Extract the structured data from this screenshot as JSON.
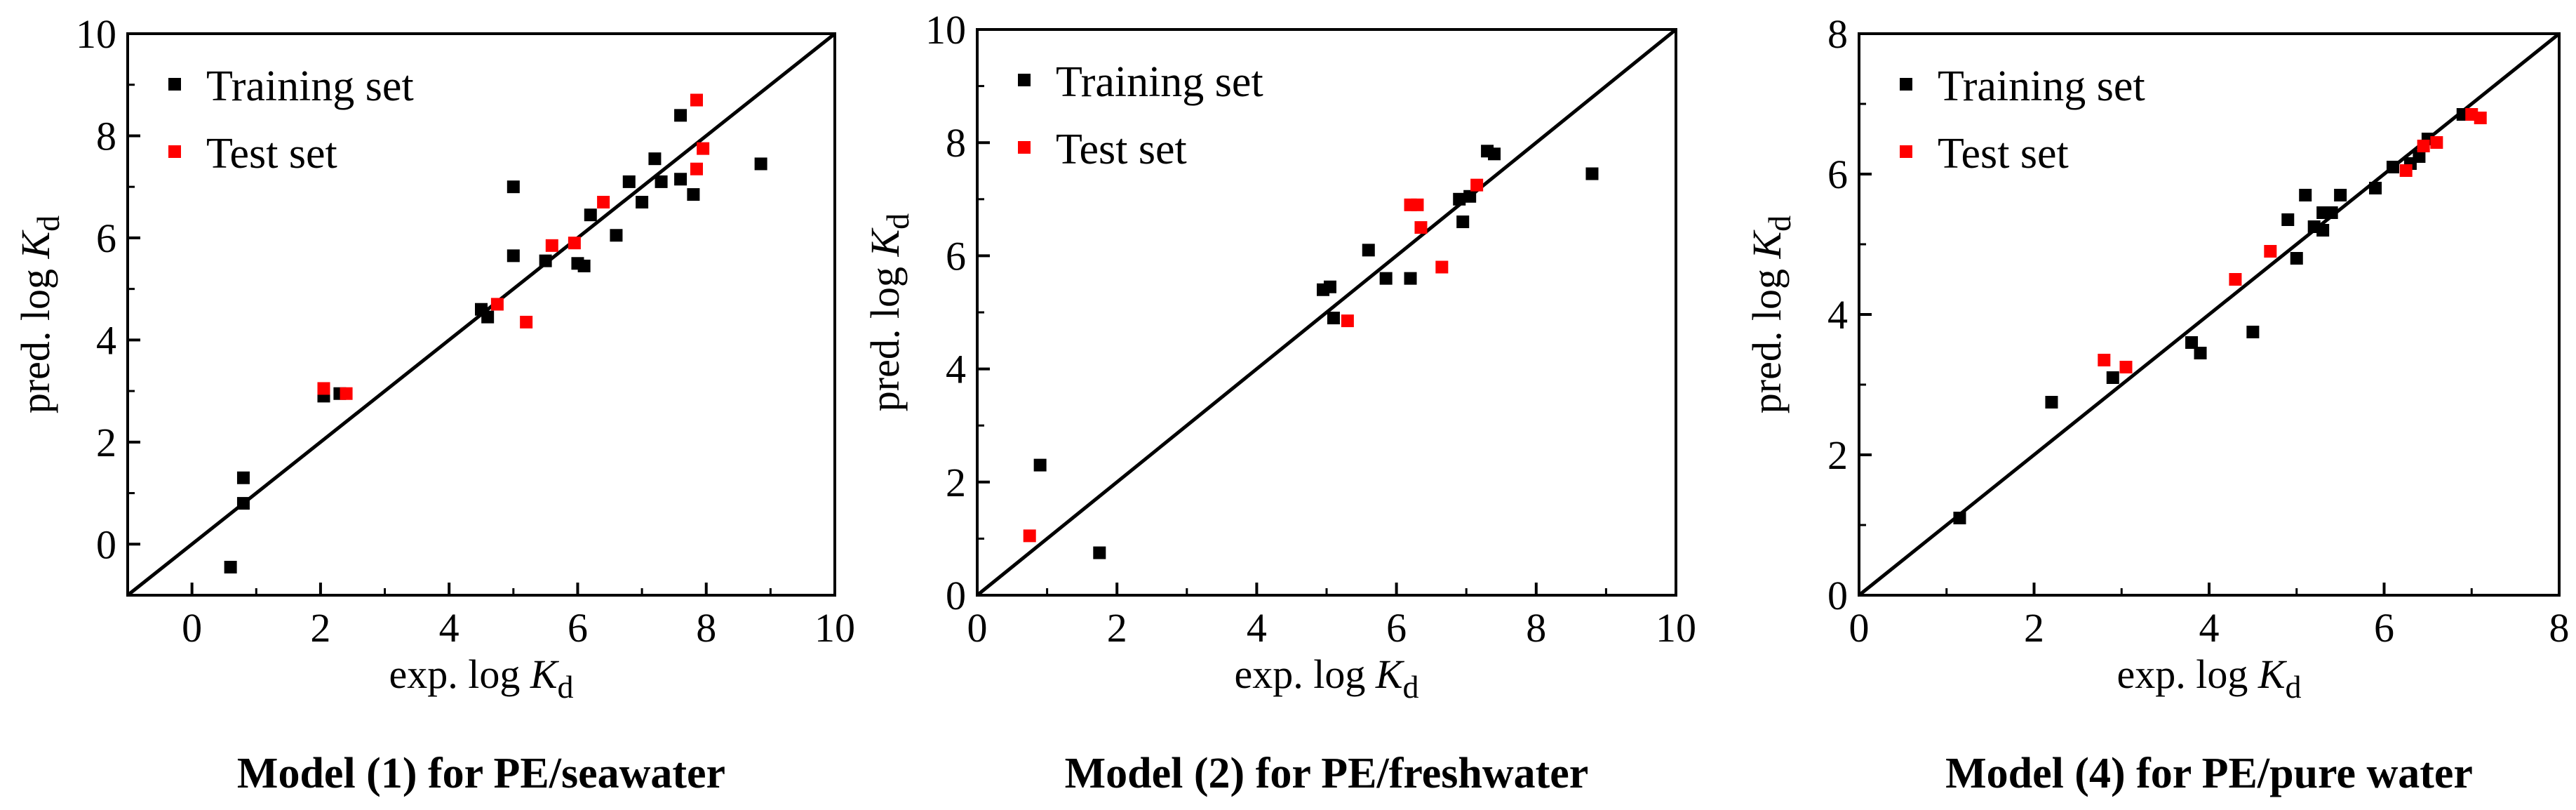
{
  "chart_data": [
    {
      "type": "scatter",
      "title": "Model (1) for PE/seawater",
      "xlabel": "exp. log Kd",
      "ylabel": "pred. log Kd",
      "xlim": [
        -1,
        10
      ],
      "ylim": [
        -1,
        10
      ],
      "xticks": [
        0,
        2,
        4,
        6,
        8,
        10
      ],
      "yticks": [
        0,
        2,
        4,
        6,
        8,
        10
      ],
      "diagonal": "y=x",
      "legend": "top-left",
      "series": [
        {
          "name": "Training set",
          "color": "#000000",
          "points": [
            [
              0.6,
              -0.45
            ],
            [
              0.8,
              1.3
            ],
            [
              0.8,
              0.8
            ],
            [
              2.05,
              2.9
            ],
            [
              2.3,
              2.95
            ],
            [
              4.5,
              4.6
            ],
            [
              4.6,
              4.45
            ],
            [
              5.0,
              7.0
            ],
            [
              5.0,
              5.65
            ],
            [
              5.5,
              5.55
            ],
            [
              6.0,
              5.5
            ],
            [
              6.1,
              5.45
            ],
            [
              6.2,
              6.45
            ],
            [
              6.6,
              6.05
            ],
            [
              6.8,
              7.1
            ],
            [
              7.0,
              6.7
            ],
            [
              7.2,
              7.55
            ],
            [
              7.3,
              7.1
            ],
            [
              7.6,
              8.4
            ],
            [
              7.6,
              7.15
            ],
            [
              7.8,
              6.85
            ],
            [
              8.85,
              7.45
            ]
          ]
        },
        {
          "name": "Test set",
          "color": "#ff0000",
          "points": [
            [
              2.05,
              3.05
            ],
            [
              2.4,
              2.95
            ],
            [
              4.75,
              4.7
            ],
            [
              5.2,
              4.35
            ],
            [
              5.6,
              5.85
            ],
            [
              5.95,
              5.9
            ],
            [
              6.4,
              6.7
            ],
            [
              7.85,
              8.7
            ],
            [
              7.85,
              7.35
            ],
            [
              7.95,
              7.75
            ]
          ]
        }
      ]
    },
    {
      "type": "scatter",
      "title": "Model (2) for PE/freshwater",
      "xlabel": "exp. log Kd",
      "ylabel": "pred. log Kd",
      "xlim": [
        0,
        10
      ],
      "ylim": [
        0,
        10
      ],
      "xticks": [
        0,
        2,
        4,
        6,
        8,
        10
      ],
      "yticks": [
        0,
        2,
        4,
        6,
        8,
        10
      ],
      "diagonal": "y=x",
      "legend": "top-left",
      "series": [
        {
          "name": "Training set",
          "color": "#000000",
          "points": [
            [
              0.9,
              2.3
            ],
            [
              1.75,
              0.75
            ],
            [
              4.95,
              5.4
            ],
            [
              5.05,
              5.45
            ],
            [
              5.1,
              4.9
            ],
            [
              5.6,
              6.1
            ],
            [
              5.85,
              5.6
            ],
            [
              6.2,
              5.6
            ],
            [
              6.9,
              7.0
            ],
            [
              6.95,
              6.6
            ],
            [
              7.05,
              7.05
            ],
            [
              7.3,
              7.85
            ],
            [
              7.4,
              7.8
            ],
            [
              8.8,
              7.45
            ]
          ]
        },
        {
          "name": "Test set",
          "color": "#ff0000",
          "points": [
            [
              0.75,
              1.05
            ],
            [
              5.3,
              4.85
            ],
            [
              6.2,
              6.9
            ],
            [
              6.3,
              6.9
            ],
            [
              6.35,
              6.5
            ],
            [
              6.65,
              5.8
            ],
            [
              7.15,
              7.25
            ]
          ]
        }
      ]
    },
    {
      "type": "scatter",
      "title": "Model (4) for PE/pure water",
      "xlabel": "exp. log Kd",
      "ylabel": "pred. log Kd",
      "xlim": [
        0,
        8
      ],
      "ylim": [
        0,
        8
      ],
      "xticks": [
        0,
        2,
        4,
        6,
        8
      ],
      "yticks": [
        0,
        2,
        4,
        6,
        8
      ],
      "diagonal": "y=x",
      "legend": "top-left",
      "series": [
        {
          "name": "Training set",
          "color": "#000000",
          "points": [
            [
              1.15,
              1.1
            ],
            [
              2.2,
              2.75
            ],
            [
              2.9,
              3.1
            ],
            [
              3.8,
              3.6
            ],
            [
              3.9,
              3.45
            ],
            [
              4.5,
              3.75
            ],
            [
              4.9,
              5.35
            ],
            [
              5.0,
              4.8
            ],
            [
              5.1,
              5.7
            ],
            [
              5.2,
              5.25
            ],
            [
              5.3,
              5.45
            ],
            [
              5.3,
              5.2
            ],
            [
              5.4,
              5.45
            ],
            [
              5.5,
              5.7
            ],
            [
              5.9,
              5.8
            ],
            [
              6.1,
              6.1
            ],
            [
              6.3,
              6.15
            ],
            [
              6.4,
              6.25
            ],
            [
              6.5,
              6.5
            ],
            [
              6.9,
              6.85
            ]
          ]
        },
        {
          "name": "Test set",
          "color": "#ff0000",
          "points": [
            [
              2.8,
              3.35
            ],
            [
              3.05,
              3.25
            ],
            [
              4.3,
              4.5
            ],
            [
              4.7,
              4.9
            ],
            [
              6.25,
              6.05
            ],
            [
              6.45,
              6.4
            ],
            [
              6.6,
              6.45
            ],
            [
              7.0,
              6.85
            ],
            [
              7.1,
              6.8
            ]
          ]
        }
      ]
    }
  ]
}
